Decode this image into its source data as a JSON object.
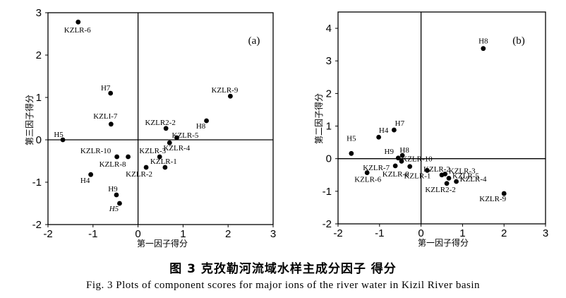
{
  "caption": {
    "chinese": "图 3   克孜勒河流域水样主成分因子 得分",
    "english": "Fig. 3   Plots of component scores for major ions of the river water in Kizil River basin"
  },
  "chart_data": [
    {
      "type": "scatter",
      "panel_label": "(a)",
      "xlabel": "第一因子得分",
      "ylabel": "第三因子得分",
      "xlim": [
        -2,
        3
      ],
      "ylim": [
        -2,
        3
      ],
      "xticks": [
        -2,
        -1,
        0,
        1,
        2,
        3
      ],
      "yticks": [
        -2,
        -1,
        0,
        1,
        2,
        3
      ],
      "points": [
        {
          "label": "KZLR-6",
          "x": -1.33,
          "y": 2.78
        },
        {
          "label": "H7",
          "x": -0.61,
          "y": 1.1
        },
        {
          "label": "KZLI-7",
          "x": -0.6,
          "y": 0.37
        },
        {
          "label": "H5",
          "x": -1.67,
          "y": 0.0
        },
        {
          "label": "KZLR-10",
          "x": -0.47,
          "y": -0.4
        },
        {
          "label": "KZLR-8",
          "x": -0.22,
          "y": -0.4
        },
        {
          "label": "KZLR-3",
          "x": 0.48,
          "y": -0.4
        },
        {
          "label": "KZLR-2",
          "x": 0.18,
          "y": -0.65
        },
        {
          "label": "KZLR-1",
          "x": 0.6,
          "y": -0.65
        },
        {
          "label": "H4",
          "x": -1.05,
          "y": -0.82
        },
        {
          "label": "H9",
          "x": -0.48,
          "y": -1.3
        },
        {
          "label": "H5",
          "x": -0.41,
          "y": -1.5
        },
        {
          "label": "KZLR2-2",
          "x": 0.62,
          "y": 0.27
        },
        {
          "label": "KZLR-5",
          "x": 0.86,
          "y": 0.05
        },
        {
          "label": "KZLR-4",
          "x": 0.7,
          "y": -0.07
        },
        {
          "label": "H8",
          "x": 1.52,
          "y": 0.45
        },
        {
          "label": "KZLR-9",
          "x": 2.05,
          "y": 1.03
        }
      ]
    },
    {
      "type": "scatter",
      "panel_label": "(b)",
      "xlabel": "第一因子得分",
      "ylabel": "第二因子得分",
      "xlim": [
        -2,
        3
      ],
      "ylim": [
        -2,
        4.5
      ],
      "xticks": [
        -2,
        -1,
        0,
        1,
        2,
        3
      ],
      "yticks": [
        -2,
        -1,
        0,
        1,
        2,
        3,
        4
      ],
      "points": [
        {
          "label": "H8",
          "x": 1.5,
          "y": 3.38
        },
        {
          "label": "H7",
          "x": -0.65,
          "y": 0.88
        },
        {
          "label": "H4",
          "x": -1.02,
          "y": 0.66
        },
        {
          "label": "H5",
          "x": -1.68,
          "y": 0.16
        },
        {
          "label": "H8",
          "x": -0.45,
          "y": 0.1
        },
        {
          "label": "H9",
          "x": -0.55,
          "y": 0.02
        },
        {
          "label": "KZLR-10",
          "x": -0.47,
          "y": -0.08
        },
        {
          "label": "KZLR-7",
          "x": -0.62,
          "y": -0.22
        },
        {
          "label": "KZLR-8",
          "x": -0.27,
          "y": -0.24
        },
        {
          "label": "KZLR-1",
          "x": 0.15,
          "y": -0.36
        },
        {
          "label": "KZLR-6",
          "x": -1.3,
          "y": -0.43
        },
        {
          "label": "KZLR-2",
          "x": 0.5,
          "y": -0.5
        },
        {
          "label": "KZLR-3",
          "x": 0.58,
          "y": -0.47
        },
        {
          "label": "KZLR-5",
          "x": 0.67,
          "y": -0.6
        },
        {
          "label": "KZLR-4",
          "x": 0.85,
          "y": -0.7
        },
        {
          "label": "KZLR2-2",
          "x": 0.62,
          "y": -0.76
        },
        {
          "label": "KZLR-9",
          "x": 2.0,
          "y": -1.07
        }
      ]
    }
  ]
}
